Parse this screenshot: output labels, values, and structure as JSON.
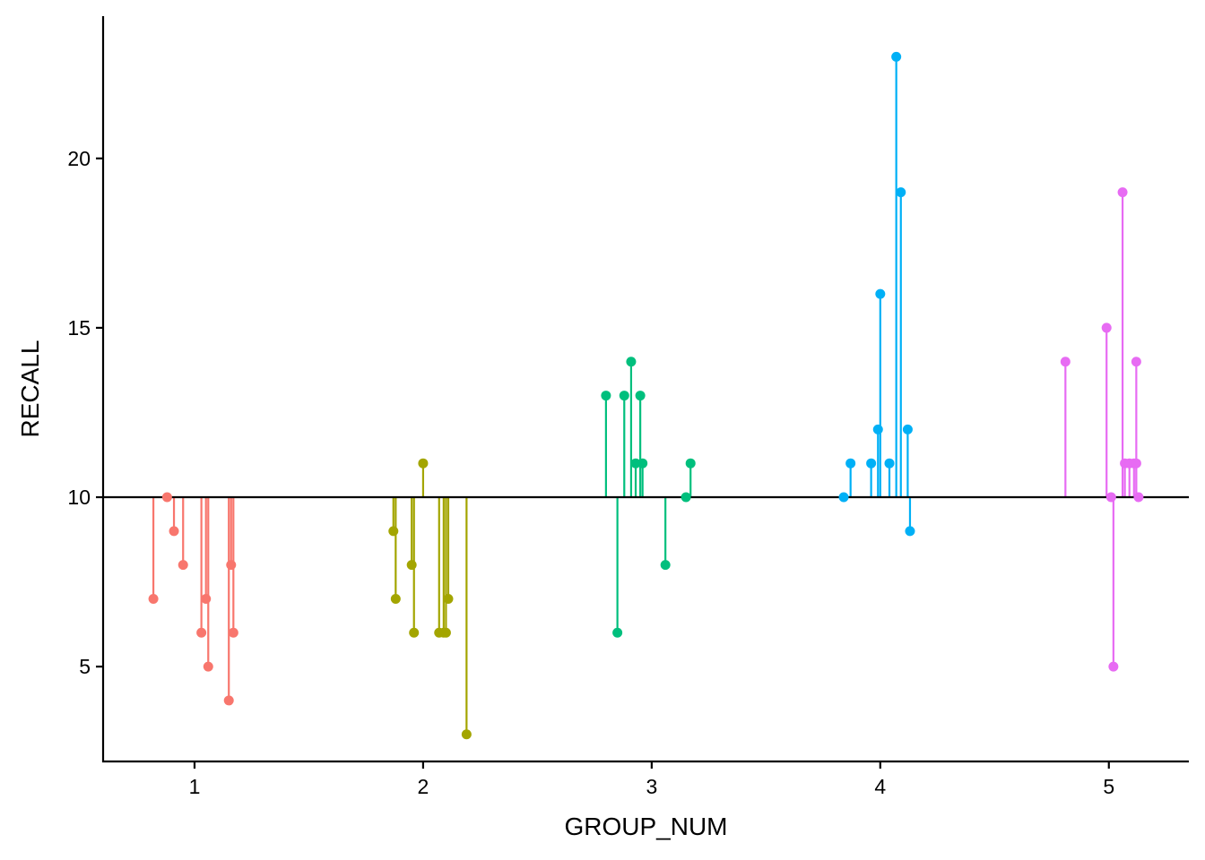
{
  "chart_data": {
    "type": "scatter",
    "style": "lollipop",
    "xlabel": "GROUP_NUM",
    "ylabel": "RECALL",
    "xlim": [
      0.6,
      5.35
    ],
    "ylim": [
      2.2,
      24.2
    ],
    "x_ticks": [
      1,
      2,
      3,
      4,
      5
    ],
    "y_ticks": [
      5,
      10,
      15,
      20
    ],
    "baseline": 10,
    "grid": false,
    "legend": "none",
    "series": [
      {
        "group": 1,
        "color": "#F8766D",
        "points": [
          {
            "x": 0.82,
            "y": 7
          },
          {
            "x": 0.88,
            "y": 10
          },
          {
            "x": 0.91,
            "y": 9
          },
          {
            "x": 0.95,
            "y": 8
          },
          {
            "x": 1.03,
            "y": 6
          },
          {
            "x": 1.05,
            "y": 7
          },
          {
            "x": 1.06,
            "y": 5
          },
          {
            "x": 1.15,
            "y": 4
          },
          {
            "x": 1.16,
            "y": 8
          },
          {
            "x": 1.17,
            "y": 6
          }
        ]
      },
      {
        "group": 2,
        "color": "#A3A500",
        "points": [
          {
            "x": 1.87,
            "y": 9
          },
          {
            "x": 1.88,
            "y": 7
          },
          {
            "x": 1.95,
            "y": 8
          },
          {
            "x": 1.96,
            "y": 6
          },
          {
            "x": 2.0,
            "y": 11
          },
          {
            "x": 2.07,
            "y": 6
          },
          {
            "x": 2.09,
            "y": 6
          },
          {
            "x": 2.1,
            "y": 6
          },
          {
            "x": 2.11,
            "y": 7
          },
          {
            "x": 2.19,
            "y": 3
          }
        ]
      },
      {
        "group": 3,
        "color": "#00BF7D",
        "points": [
          {
            "x": 2.8,
            "y": 13
          },
          {
            "x": 2.85,
            "y": 6
          },
          {
            "x": 2.88,
            "y": 13
          },
          {
            "x": 2.91,
            "y": 14
          },
          {
            "x": 2.93,
            "y": 11
          },
          {
            "x": 2.95,
            "y": 13
          },
          {
            "x": 2.96,
            "y": 11
          },
          {
            "x": 3.06,
            "y": 8
          },
          {
            "x": 3.15,
            "y": 10
          },
          {
            "x": 3.17,
            "y": 11
          }
        ]
      },
      {
        "group": 4,
        "color": "#00B0F6",
        "points": [
          {
            "x": 3.84,
            "y": 10
          },
          {
            "x": 3.87,
            "y": 11
          },
          {
            "x": 3.96,
            "y": 11
          },
          {
            "x": 3.99,
            "y": 12
          },
          {
            "x": 4.0,
            "y": 16
          },
          {
            "x": 4.04,
            "y": 11
          },
          {
            "x": 4.07,
            "y": 23
          },
          {
            "x": 4.09,
            "y": 19
          },
          {
            "x": 4.12,
            "y": 12
          },
          {
            "x": 4.13,
            "y": 9
          }
        ]
      },
      {
        "group": 5,
        "color": "#E76BF3",
        "points": [
          {
            "x": 4.81,
            "y": 14
          },
          {
            "x": 4.99,
            "y": 15
          },
          {
            "x": 5.01,
            "y": 10
          },
          {
            "x": 5.02,
            "y": 5
          },
          {
            "x": 5.06,
            "y": 19
          },
          {
            "x": 5.07,
            "y": 11
          },
          {
            "x": 5.09,
            "y": 11
          },
          {
            "x": 5.11,
            "y": 11
          },
          {
            "x": 5.12,
            "y": 14
          },
          {
            "x": 5.12,
            "y": 11
          },
          {
            "x": 5.13,
            "y": 10
          }
        ]
      }
    ]
  }
}
